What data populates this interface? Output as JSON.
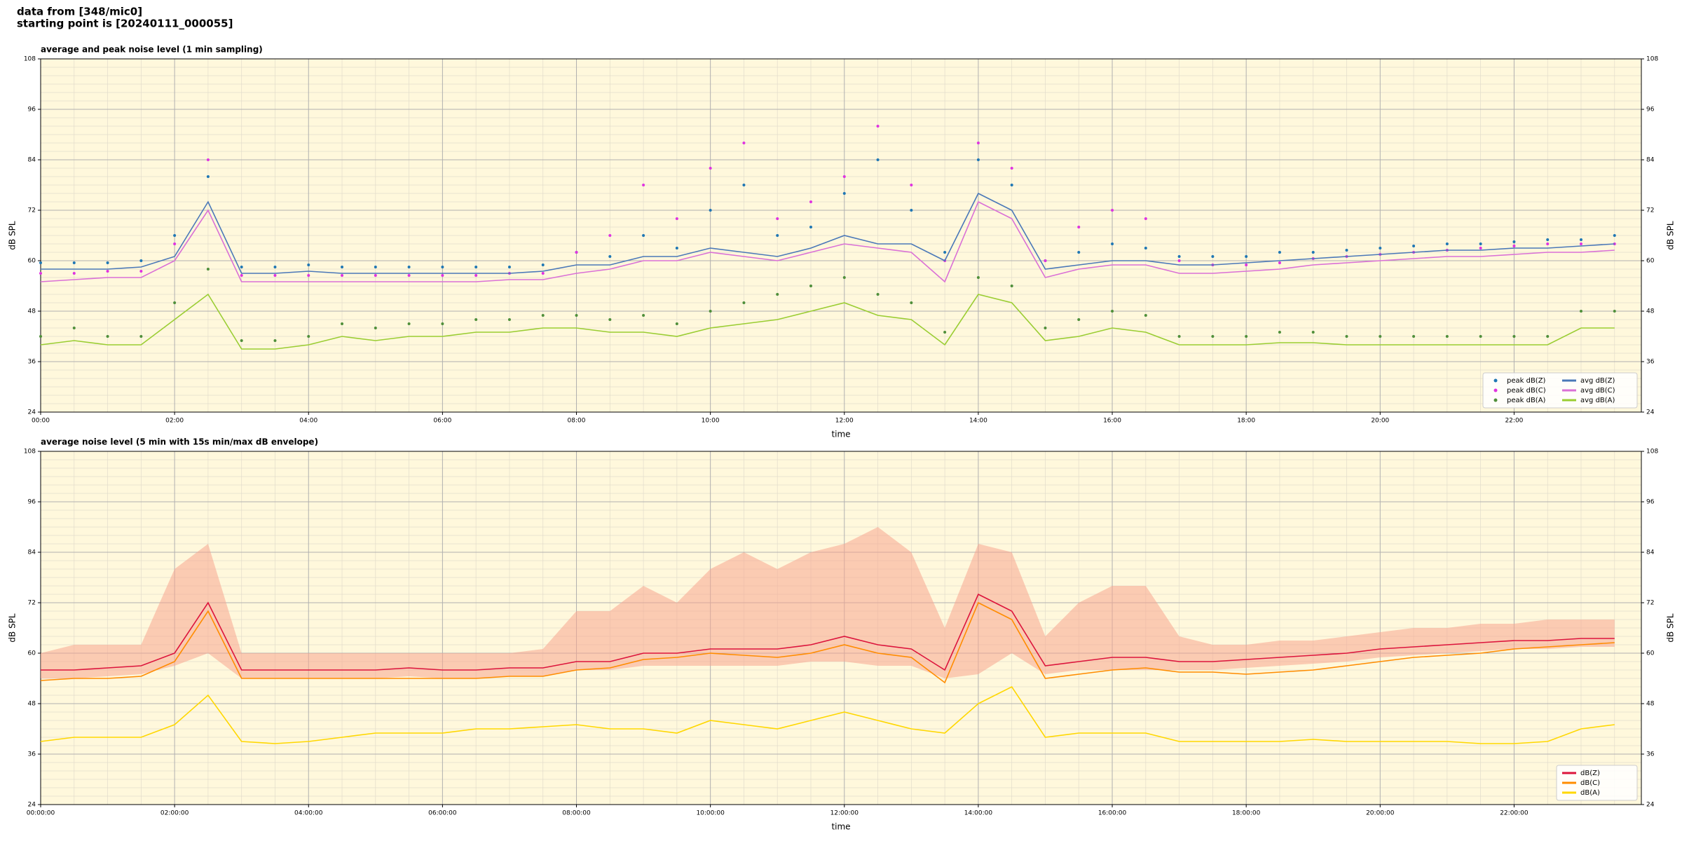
{
  "header": {
    "line1": "data from [348/mic0]",
    "line2": "starting point is [20240111_000055]"
  },
  "chart_data": [
    {
      "type": "line",
      "title": "average and peak noise level (1 min sampling)",
      "xlabel": "time",
      "ylabel": "dB SPL",
      "x": [
        0,
        0.5,
        1,
        1.5,
        2,
        2.5,
        3,
        3.5,
        4,
        4.5,
        5,
        5.5,
        6,
        6.5,
        7,
        7.5,
        8,
        8.5,
        9,
        9.5,
        10,
        10.5,
        11,
        11.5,
        12,
        12.5,
        13,
        13.5,
        14,
        14.5,
        15,
        15.5,
        16,
        16.5,
        17,
        17.5,
        18,
        18.5,
        19,
        19.5,
        20,
        20.5,
        21,
        21.5,
        22,
        22.5,
        23,
        23.5
      ],
      "xlim": [
        0,
        23.9
      ],
      "xticks": [
        {
          "value": 0,
          "label": "00:00"
        },
        {
          "value": 2,
          "label": "02:00"
        },
        {
          "value": 4,
          "label": "04:00"
        },
        {
          "value": 6,
          "label": "06:00"
        },
        {
          "value": 8,
          "label": "08:00"
        },
        {
          "value": 10,
          "label": "10:00"
        },
        {
          "value": 12,
          "label": "12:00"
        },
        {
          "value": 14,
          "label": "14:00"
        },
        {
          "value": 16,
          "label": "16:00"
        },
        {
          "value": 18,
          "label": "18:00"
        },
        {
          "value": 20,
          "label": "20:00"
        },
        {
          "value": 22,
          "label": "22:00"
        }
      ],
      "ylim": [
        24,
        108
      ],
      "yticks": [
        24,
        36,
        48,
        60,
        72,
        84,
        96,
        108
      ],
      "grid": true,
      "legend": "lower right",
      "legend_columns": 2,
      "series": [
        {
          "name": "peak dB(Z)",
          "kind": "scatter",
          "color": "#1f77b4",
          "values": [
            59.5,
            59.5,
            59.5,
            60,
            66,
            80,
            58.5,
            58.5,
            59,
            58.5,
            58.5,
            58.5,
            58.5,
            58.5,
            58.5,
            59,
            62,
            61,
            66,
            63,
            72,
            78,
            66,
            68,
            76,
            84,
            72,
            62,
            84,
            78,
            60,
            62,
            64,
            63,
            61,
            61,
            61,
            62,
            62,
            62.5,
            63,
            63.5,
            64,
            64,
            64.5,
            65,
            65,
            66
          ]
        },
        {
          "name": "peak dB(C)",
          "kind": "scatter",
          "color": "#e033e0",
          "values": [
            57,
            57,
            57.5,
            57.5,
            64,
            84,
            56.5,
            56.5,
            56.5,
            56.5,
            56.5,
            56.5,
            56.5,
            56.5,
            57,
            57,
            62,
            66,
            78,
            70,
            82,
            88,
            70,
            74,
            80,
            92,
            78,
            60,
            88,
            82,
            60,
            68,
            72,
            70,
            60,
            59,
            59,
            59.5,
            60.5,
            61,
            61.5,
            62,
            62.5,
            63,
            63.5,
            64,
            64,
            64
          ]
        },
        {
          "name": "peak dB(A)",
          "kind": "scatter",
          "color": "#4f8f3a",
          "values": [
            42,
            44,
            42,
            42,
            50,
            58,
            41,
            41,
            42,
            45,
            44,
            45,
            45,
            46,
            46,
            47,
            47,
            46,
            47,
            45,
            48,
            50,
            52,
            54,
            56,
            52,
            50,
            43,
            56,
            54,
            44,
            46,
            48,
            47,
            42,
            42,
            42,
            43,
            43,
            42,
            42,
            42,
            42,
            42,
            42,
            42,
            48,
            48
          ]
        },
        {
          "name": "avg dB(Z)",
          "kind": "line",
          "color": "#4a78b8",
          "values": [
            58,
            58,
            58,
            58.5,
            61,
            74,
            57,
            57,
            57.5,
            57,
            57,
            57,
            57,
            57,
            57,
            57.5,
            59,
            59,
            61,
            61,
            63,
            62,
            61,
            63,
            66,
            64,
            64,
            60,
            76,
            72,
            58,
            59,
            60,
            60,
            59,
            59,
            59.5,
            60,
            60.5,
            61,
            61.5,
            62,
            62.5,
            62.5,
            63,
            63,
            63.5,
            64
          ]
        },
        {
          "name": "avg dB(C)",
          "kind": "line",
          "color": "#da70d6",
          "values": [
            55,
            55.5,
            56,
            56,
            60,
            72,
            55,
            55,
            55,
            55,
            55,
            55,
            55,
            55,
            55.5,
            55.5,
            57,
            58,
            60,
            60,
            62,
            61,
            60,
            62,
            64,
            63,
            62,
            55,
            74,
            70,
            56,
            58,
            59,
            59,
            57,
            57,
            57.5,
            58,
            59,
            59.5,
            60,
            60.5,
            61,
            61,
            61.5,
            62,
            62,
            62.5
          ]
        },
        {
          "name": "avg dB(A)",
          "kind": "line",
          "color": "#9acd32",
          "values": [
            40,
            41,
            40,
            40,
            46,
            52,
            39,
            39,
            40,
            42,
            41,
            42,
            42,
            43,
            43,
            44,
            44,
            43,
            43,
            42,
            44,
            45,
            46,
            48,
            50,
            47,
            46,
            40,
            52,
            50,
            41,
            42,
            44,
            43,
            40,
            40,
            40,
            40.5,
            40.5,
            40,
            40,
            40,
            40,
            40,
            40,
            40,
            44,
            44
          ]
        }
      ]
    },
    {
      "type": "line",
      "title": "average noise level (5 min with 15s min/max dB envelope)",
      "xlabel": "time",
      "ylabel": "dB SPL",
      "x": [
        0,
        0.5,
        1,
        1.5,
        2,
        2.5,
        3,
        3.5,
        4,
        4.5,
        5,
        5.5,
        6,
        6.5,
        7,
        7.5,
        8,
        8.5,
        9,
        9.5,
        10,
        10.5,
        11,
        11.5,
        12,
        12.5,
        13,
        13.5,
        14,
        14.5,
        15,
        15.5,
        16,
        16.5,
        17,
        17.5,
        18,
        18.5,
        19,
        19.5,
        20,
        20.5,
        21,
        21.5,
        22,
        22.5,
        23,
        23.5
      ],
      "xlim": [
        0,
        23.9
      ],
      "xticks": [
        {
          "value": 0,
          "label": "00:00:00"
        },
        {
          "value": 2,
          "label": "02:00:00"
        },
        {
          "value": 4,
          "label": "04:00:00"
        },
        {
          "value": 6,
          "label": "06:00:00"
        },
        {
          "value": 8,
          "label": "08:00:00"
        },
        {
          "value": 10,
          "label": "10:00:00"
        },
        {
          "value": 12,
          "label": "12:00:00"
        },
        {
          "value": 14,
          "label": "14:00:00"
        },
        {
          "value": 16,
          "label": "16:00:00"
        },
        {
          "value": 18,
          "label": "18:00:00"
        },
        {
          "value": 20,
          "label": "20:00:00"
        },
        {
          "value": 22,
          "label": "22:00:00"
        }
      ],
      "ylim": [
        24,
        108
      ],
      "yticks": [
        24,
        36,
        48,
        60,
        72,
        84,
        96,
        108
      ],
      "grid": true,
      "legend": "lower right",
      "legend_columns": 1,
      "series": [
        {
          "name": "dB(Z)",
          "kind": "line",
          "color": "#dc143c",
          "envelope_color": "#f7a58f",
          "values": [
            56,
            56,
            56.5,
            57,
            60,
            72,
            56,
            56,
            56,
            56,
            56,
            56.5,
            56,
            56,
            56.5,
            56.5,
            58,
            58,
            60,
            60,
            61,
            61,
            61,
            62,
            64,
            62,
            61,
            56,
            74,
            70,
            57,
            58,
            59,
            59,
            58,
            58,
            58.5,
            59,
            59.5,
            60,
            61,
            61.5,
            62,
            62.5,
            63,
            63,
            63.5,
            63.5
          ],
          "min": [
            54,
            54,
            54.5,
            55,
            57,
            60,
            54,
            54,
            54,
            54,
            54,
            54.5,
            54,
            54,
            54.5,
            54.5,
            56,
            56,
            57,
            57,
            57,
            57,
            57,
            58,
            58,
            57,
            57,
            54,
            55,
            60,
            55,
            56,
            56,
            56,
            56,
            56,
            56.5,
            57,
            57.5,
            58,
            59,
            59.5,
            60,
            60.5,
            61,
            61,
            61.5,
            61.5
          ],
          "max": [
            60,
            62,
            62,
            62,
            80,
            86,
            60,
            60,
            60,
            60,
            60,
            60,
            60,
            60,
            60,
            61,
            70,
            70,
            76,
            72,
            80,
            84,
            80,
            84,
            86,
            90,
            84,
            66,
            86,
            84,
            64,
            72,
            76,
            76,
            64,
            62,
            62,
            63,
            63,
            64,
            65,
            66,
            66,
            67,
            67,
            68,
            68,
            68
          ]
        },
        {
          "name": "dB(C)",
          "kind": "line",
          "color": "#ff8c00",
          "values": [
            53.5,
            54,
            54,
            54.5,
            58,
            70,
            54,
            54,
            54,
            54,
            54,
            54,
            54,
            54,
            54.5,
            54.5,
            56,
            56.5,
            58.5,
            59,
            60,
            59.5,
            59,
            60,
            62,
            60,
            59,
            53,
            72,
            68,
            54,
            55,
            56,
            56.5,
            55.5,
            55.5,
            55,
            55.5,
            56,
            57,
            58,
            59,
            59.5,
            60,
            61,
            61.5,
            62,
            62.5
          ]
        },
        {
          "name": "dB(A)",
          "kind": "line",
          "color": "#ffd700",
          "values": [
            39,
            40,
            40,
            40,
            43,
            50,
            39,
            38.5,
            39,
            40,
            41,
            41,
            41,
            42,
            42,
            42.5,
            43,
            42,
            42,
            41,
            44,
            43,
            42,
            44,
            46,
            44,
            42,
            41,
            48,
            52,
            40,
            41,
            41,
            41,
            39,
            39,
            39,
            39,
            39.5,
            39,
            39,
            39,
            39,
            38.5,
            38.5,
            39,
            42,
            43
          ]
        }
      ]
    }
  ]
}
